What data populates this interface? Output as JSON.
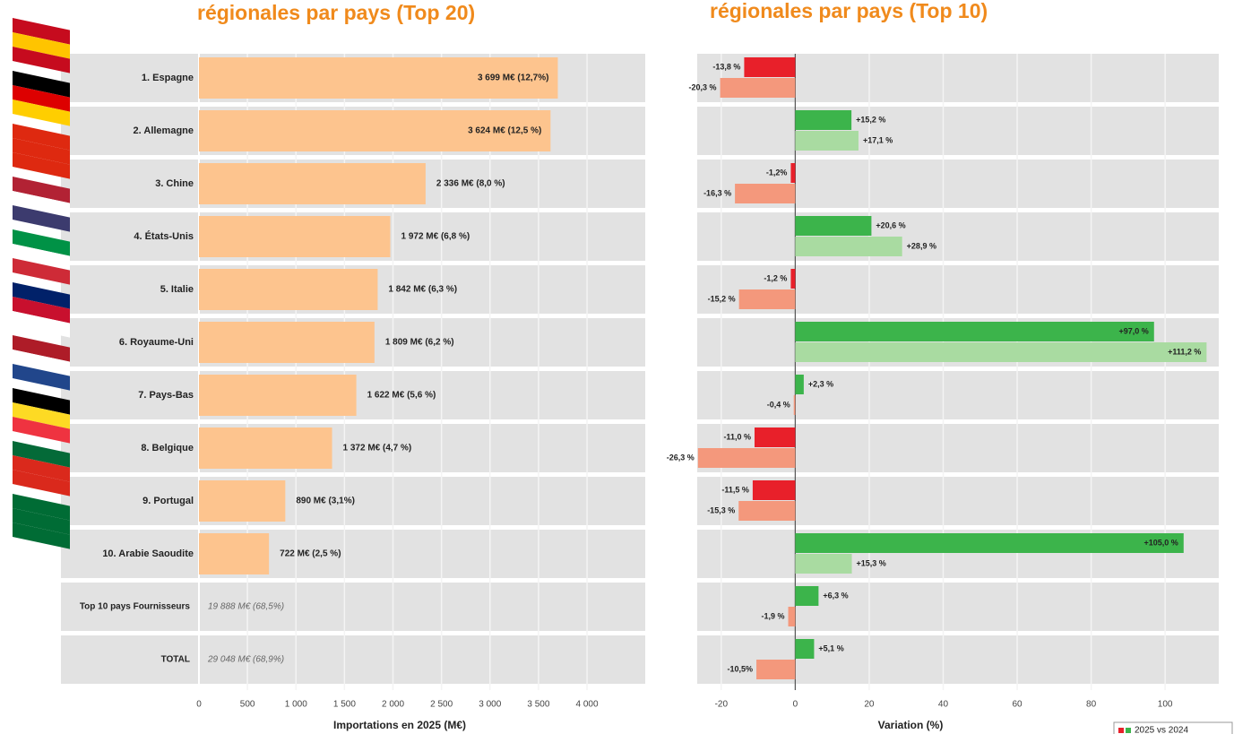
{
  "chart_data": [
    {
      "type": "hbar",
      "title": "régionales par pays (Top 20)",
      "categories": [
        "1. Espagne",
        "2. Allemagne",
        "3. Chine",
        "4. États-Unis",
        "5. Italie",
        "6. Royaume-Uni",
        "7. Pays-Bas",
        "8. Belgique",
        "9. Portugal",
        "10. Arabie Saoudite"
      ],
      "values": [
        3699,
        3624,
        2336,
        1972,
        1842,
        1809,
        1622,
        1372,
        890,
        722
      ],
      "value_labels": [
        "3 699 M€ (12,7%)",
        "3 624 M€ (12,5 %)",
        "2 336 M€ (8,0 %)",
        "1 972 M€ (6,8 %)",
        "1 842 M€ (6,3 %)",
        "1 809 M€ (6,2 %)",
        "1 622 M€ (5,6 %)",
        "1 372 M€ (4,7 %)",
        "890 M€ (3,1%)",
        "722 M€ (2,5 %)"
      ],
      "summary_rows": [
        {
          "label": "Top 10 pays Fournisseurs",
          "value_label": "19 888 M€ (68,5%)"
        },
        {
          "label": "TOTAL",
          "value_label": "29 048 M€ (68,9%)"
        }
      ],
      "color": "#fdc48e",
      "xlim": [
        0,
        4600
      ],
      "xticks": [
        0,
        500,
        {
          "value": 1000,
          "label": "1 000"
        },
        {
          "value": 1500,
          "label": "1 500"
        },
        {
          "value": 2000,
          "label": "2 000"
        },
        {
          "value": 2500,
          "label": "2 500"
        },
        {
          "value": 3000,
          "label": "3 000"
        },
        {
          "value": 3500,
          "label": "3 500"
        },
        {
          "value": 4000,
          "label": "4 000"
        }
      ],
      "xlabel": "Importations en 2025 (M€)",
      "grid": true
    },
    {
      "type": "diverging-hbar",
      "title": "régionales par pays (Top 10)",
      "series": [
        {
          "name": "2025 vs 2024",
          "color_positive": "#3cb44b",
          "color_negative": "#e8202a",
          "values": [
            -13.8,
            15.2,
            -1.2,
            20.6,
            -1.2,
            97.0,
            2.3,
            -11.0,
            -11.5,
            105.0,
            6.3,
            5.1
          ],
          "value_labels": [
            "-13,8 %",
            "+15,2 %",
            "-1,2%",
            "+20,6 %",
            "-1,2 %",
            "+97,0 %",
            "+2,3 %",
            "-11,0 %",
            "-11,5 %",
            "+105,0 %",
            "+6,3 %",
            "+5,1 %"
          ]
        },
        {
          "color_positive": "#a9dba1",
          "color_negative": "#f4987c",
          "values": [
            -20.3,
            17.1,
            -16.3,
            28.9,
            -15.2,
            111.2,
            -0.4,
            -26.3,
            -15.3,
            15.3,
            -1.9,
            -10.5
          ],
          "value_labels": [
            "-20,3 %",
            "+17,1 %",
            "-16,3 %",
            "+28,9 %",
            "-15,2 %",
            "+111,2 %",
            "-0,4 %",
            "-26,3 %",
            "-15,3 %",
            "+15,3 %",
            "-1,9 %",
            "-10,5%"
          ]
        }
      ],
      "xlim": [
        -26.5,
        114.5
      ],
      "xticks": [
        -20,
        0,
        20,
        40,
        60,
        80,
        100
      ],
      "xlabel": "Variation (%)",
      "grid": true,
      "legend": "bottom-right"
    }
  ]
}
